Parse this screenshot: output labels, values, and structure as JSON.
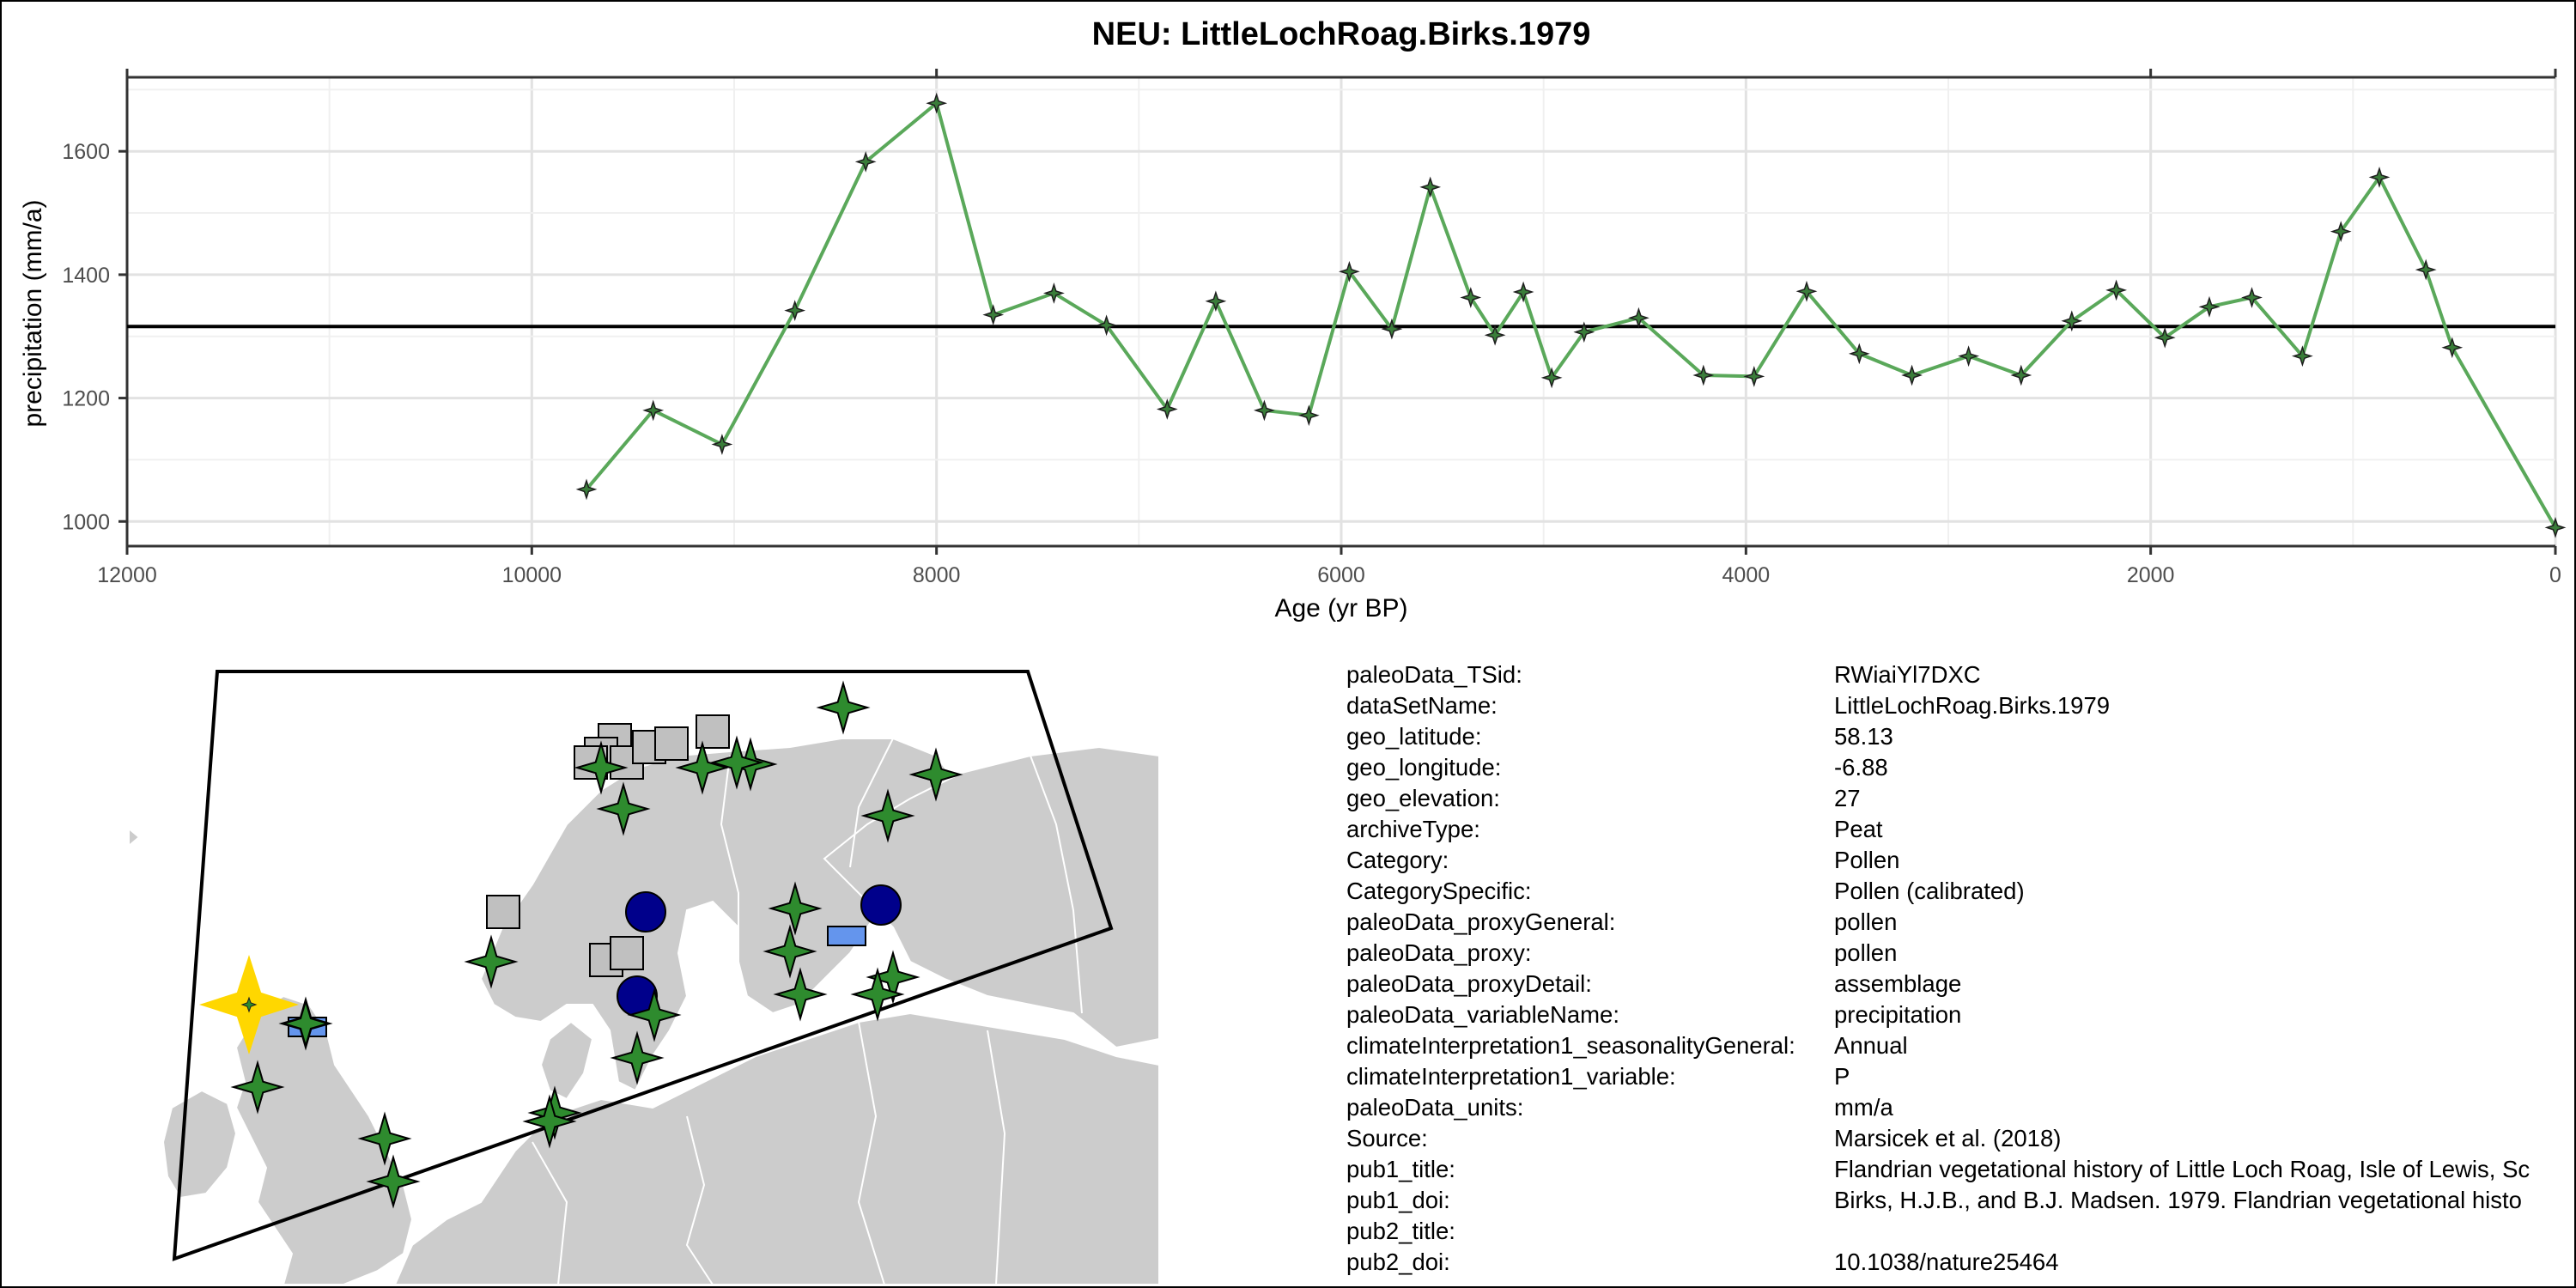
{
  "chart_data": {
    "type": "line",
    "title": "NEU: LittleLochRoag.Birks.1979",
    "xlabel": "Age (yr BP)",
    "ylabel": "precipitation (mm/a)",
    "xlim": [
      12000,
      0
    ],
    "ylim": [
      960,
      1720
    ],
    "x_reversed": true,
    "x_ticks": [
      12000,
      10000,
      8000,
      6000,
      4000,
      2000,
      0
    ],
    "y_ticks": [
      1000,
      1200,
      1400,
      1600
    ],
    "grid": true,
    "series": [
      {
        "color": "#5aa85a",
        "marker": "four-point-star",
        "x": [
          9730,
          9400,
          9060,
          8700,
          8350,
          8000,
          7720,
          7420,
          7160,
          6860,
          6620,
          6380,
          6160,
          5960,
          5750,
          5560,
          5360,
          5240,
          5100,
          4960,
          4800,
          4530,
          4210,
          3960,
          3700,
          3440,
          3180,
          2900,
          2640,
          2390,
          2170,
          1930,
          1710,
          1500,
          1250,
          1060,
          870,
          640,
          510,
          0
        ],
        "y": [
          1052,
          1180,
          1125,
          1342,
          1583,
          1678,
          1335,
          1370,
          1318,
          1182,
          1357,
          1180,
          1172,
          1405,
          1312,
          1542,
          1363,
          1302,
          1372,
          1233,
          1307,
          1330,
          1237,
          1235,
          1373,
          1272,
          1237,
          1268,
          1237,
          1325,
          1375,
          1298,
          1348,
          1363,
          1268,
          1470,
          1558,
          1408,
          1282,
          990
        ]
      }
    ],
    "reference_line": {
      "y": 1316,
      "color": "#000000"
    }
  },
  "map": {
    "land_color": "#cccccc",
    "highlight_color": "#ffd700",
    "markers": {
      "star_color": "#2e8b2e",
      "circle_color": "#00008b",
      "square_color": "#c0c0c0",
      "rect_color": "#6495ed"
    }
  },
  "metadata": [
    {
      "key": "paleoData_TSid:",
      "value": "RWiaiYl7DXC"
    },
    {
      "key": "dataSetName:",
      "value": "LittleLochRoag.Birks.1979"
    },
    {
      "key": "geo_latitude:",
      "value": "58.13"
    },
    {
      "key": "geo_longitude:",
      "value": "-6.88"
    },
    {
      "key": "geo_elevation:",
      "value": "27"
    },
    {
      "key": "archiveType:",
      "value": "Peat"
    },
    {
      "key": "Category:",
      "value": "Pollen"
    },
    {
      "key": "CategorySpecific:",
      "value": "Pollen (calibrated)"
    },
    {
      "key": "paleoData_proxyGeneral:",
      "value": "pollen"
    },
    {
      "key": "paleoData_proxy:",
      "value": "pollen"
    },
    {
      "key": "paleoData_proxyDetail:",
      "value": "assemblage"
    },
    {
      "key": "paleoData_variableName:",
      "value": "precipitation"
    },
    {
      "key": "climateInterpretation1_seasonalityGeneral:",
      "value": "Annual"
    },
    {
      "key": "climateInterpretation1_variable:",
      "value": "P"
    },
    {
      "key": "paleoData_units:",
      "value": "mm/a"
    },
    {
      "key": "Source:",
      "value": "Marsicek et al. (2018)"
    },
    {
      "key": "pub1_title:",
      "value": "Flandrian vegetational history of Little Loch Roag, Isle of Lewis, Sc"
    },
    {
      "key": "pub1_doi:",
      "value": "Birks, H.J.B., and B.J. Madsen. 1979. Flandrian vegetational histo"
    },
    {
      "key": "pub2_title:",
      "value": ""
    },
    {
      "key": "pub2_doi:",
      "value": "10.1038/nature25464"
    }
  ]
}
